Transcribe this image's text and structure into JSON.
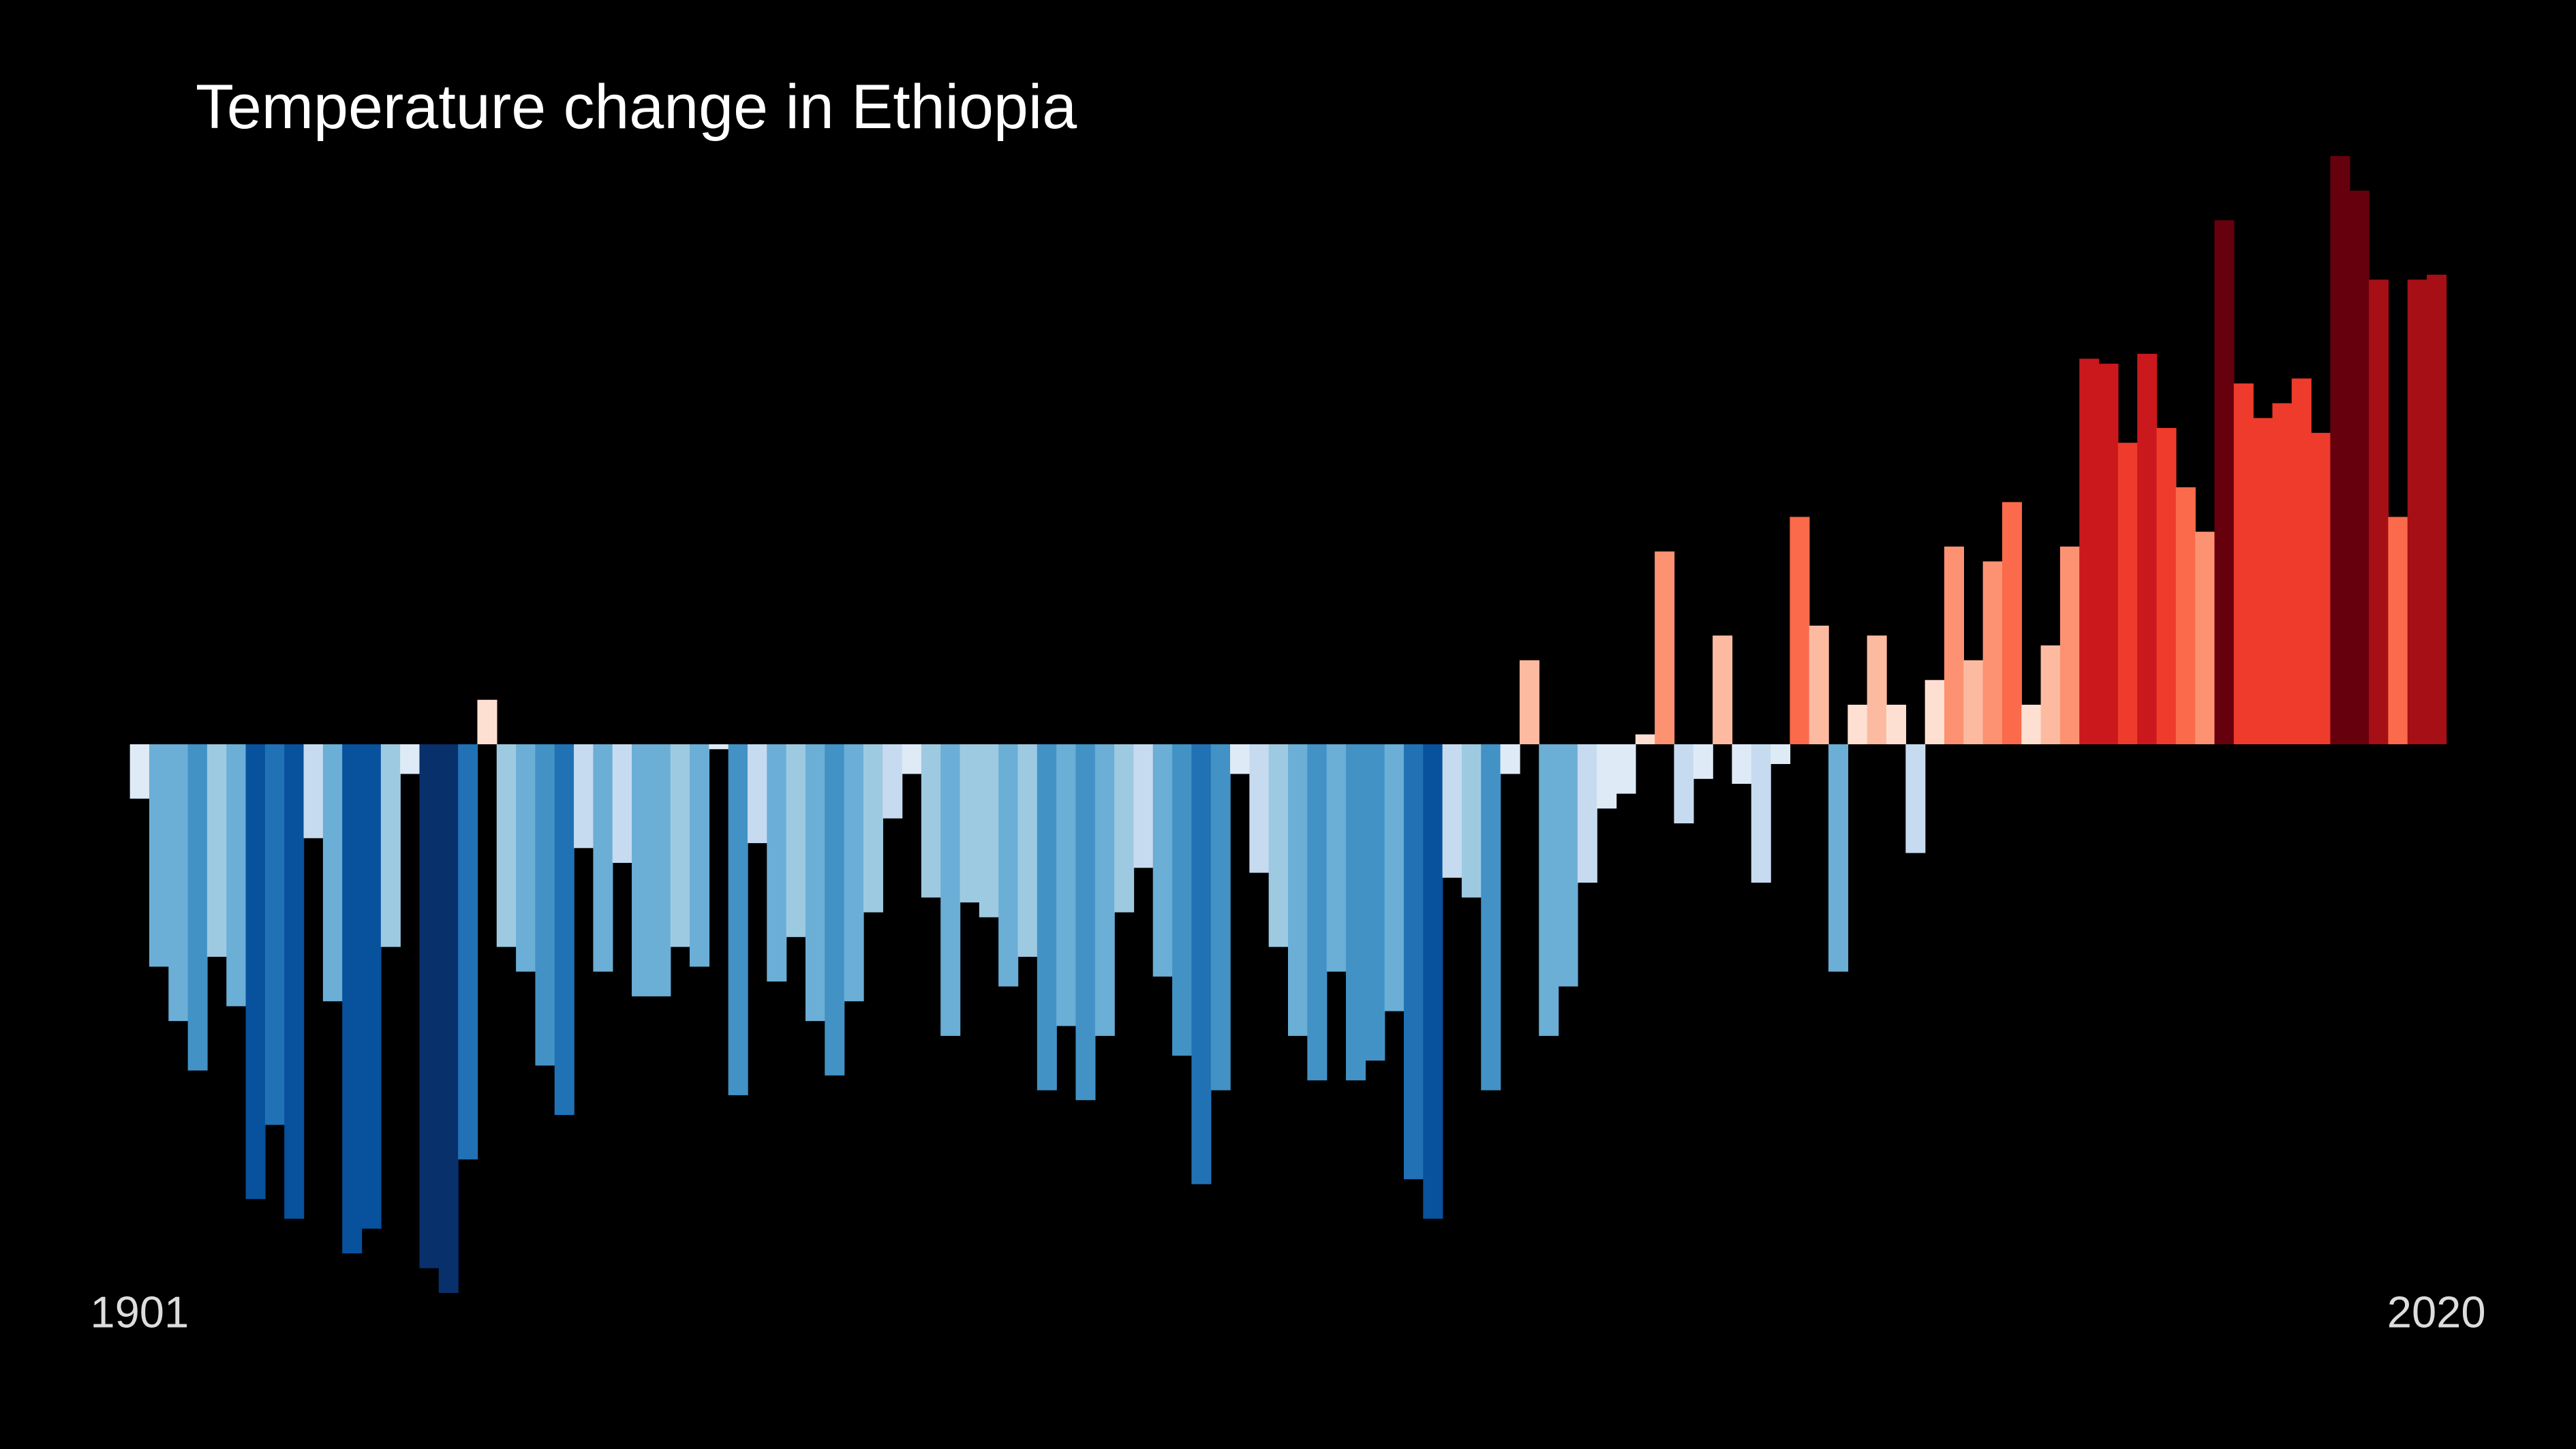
{
  "chart_data": {
    "type": "bar",
    "title": "Temperature change in Ethiopia",
    "categories": [
      "1901",
      null,
      null,
      null,
      null,
      null,
      null,
      null,
      null,
      null,
      null,
      null,
      null,
      null,
      null,
      null,
      null,
      null,
      null,
      null,
      null,
      null,
      null,
      null,
      null,
      null,
      null,
      null,
      null,
      null,
      null,
      null,
      null,
      null,
      null,
      null,
      null,
      null,
      null,
      null,
      null,
      null,
      null,
      null,
      null,
      null,
      null,
      null,
      null,
      null,
      null,
      null,
      null,
      null,
      null,
      null,
      null,
      null,
      null,
      null,
      null,
      null,
      null,
      null,
      null,
      null,
      null,
      null,
      null,
      null,
      null,
      null,
      null,
      null,
      null,
      null,
      null,
      null,
      null,
      null,
      null,
      null,
      null,
      null,
      null,
      null,
      null,
      null,
      null,
      null,
      null,
      null,
      null,
      null,
      null,
      null,
      null,
      null,
      null,
      null,
      null,
      null,
      null,
      null,
      null,
      null,
      null,
      null,
      null,
      null,
      null,
      null,
      null,
      null,
      null,
      null,
      null,
      null,
      null,
      "2020"
    ],
    "values": [
      -0.11,
      -0.45,
      -0.56,
      -0.66,
      -0.43,
      -0.53,
      -0.92,
      -0.77,
      -0.96,
      -0.19,
      -0.52,
      -1.03,
      -0.98,
      -0.41,
      -0.06,
      -1.06,
      -1.11,
      -0.84,
      0.09,
      -0.41,
      -0.46,
      -0.65,
      -0.75,
      -0.21,
      -0.46,
      -0.24,
      -0.51,
      -0.51,
      -0.41,
      -0.45,
      -0.01,
      -0.71,
      -0.2,
      -0.48,
      -0.39,
      -0.56,
      -0.67,
      -0.52,
      -0.34,
      -0.15,
      -0.06,
      -0.31,
      -0.59,
      -0.32,
      -0.35,
      -0.49,
      -0.43,
      -0.7,
      -0.57,
      -0.72,
      -0.59,
      -0.34,
      -0.25,
      -0.47,
      -0.63,
      -0.89,
      -0.7,
      -0.06,
      -0.26,
      -0.41,
      -0.59,
      -0.68,
      -0.46,
      -0.68,
      -0.64,
      -0.54,
      -0.88,
      -0.96,
      -0.27,
      -0.31,
      -0.7,
      -0.06,
      0.17,
      -0.59,
      -0.49,
      -0.28,
      -0.13,
      -0.1,
      0.02,
      0.39,
      -0.16,
      -0.07,
      0.22,
      -0.08,
      -0.28,
      -0.04,
      0.46,
      0.24,
      -0.46,
      0.08,
      0.22,
      0.08,
      -0.22,
      0.13,
      0.4,
      0.17,
      0.37,
      0.49,
      0.08,
      0.2,
      0.4,
      0.78,
      0.77,
      0.61,
      0.79,
      0.64,
      0.52,
      0.43,
      1.06,
      0.73,
      0.66,
      0.69,
      0.74,
      0.63,
      1.19,
      1.12,
      0.94,
      0.46,
      0.94,
      0.95
    ],
    "colormap": [
      "#08306b",
      "#08519c",
      "#2171b5",
      "#4292c6",
      "#6baed6",
      "#9ecae1",
      "#c6dbef",
      "#deebf7",
      "#fee0d2",
      "#fcbba1",
      "#fc9272",
      "#fb6a4a",
      "#ef3b2c",
      "#cb181d",
      "#a50f15",
      "#67000d"
    ]
  }
}
